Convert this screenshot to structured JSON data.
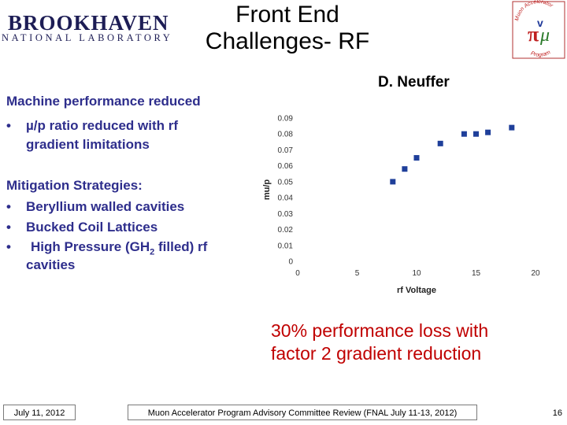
{
  "header": {
    "logo_line1": "BROOKHAVEN",
    "logo_line2": "NATIONAL LABORATORY",
    "title_line1": "Front End",
    "title_line2": "Challenges- RF",
    "map_logo_top": "Muon Accelerator",
    "map_logo_bottom": "Program",
    "author": "D. Neuffer"
  },
  "left": {
    "heading": "Machine performance reduced",
    "bullet_char": "•",
    "bullet1_line1": "µ/p ratio reduced with rf",
    "bullet1_line2": "gradient limitations",
    "mitigation_heading": "Mitigation Strategies:",
    "mit1": "Beryllium walled cavities",
    "mit2": "Bucked Coil Lattices",
    "mit3_pre": "High Pressure (GH",
    "mit3_sub": "2",
    "mit3_post": " filled) rf",
    "mit3_line2": "cavities"
  },
  "conclusion_line1": "30% performance loss with",
  "conclusion_line2": "factor 2 gradient reduction",
  "footer": {
    "date": "July 11, 2012",
    "center": "Muon Accelerator Program Advisory Committee Review (FNAL July 11-13, 2012)",
    "page": "16"
  },
  "colors": {
    "text_blue": "#2e2e8c",
    "marker": "#1f3f9a",
    "conclusion": "#c00000"
  },
  "chart_data": {
    "type": "scatter",
    "xlabel": "rf Voltage",
    "ylabel": "mu/p",
    "xlim": [
      0,
      20
    ],
    "ylim": [
      0,
      0.09
    ],
    "x_ticks": [
      "0",
      "5",
      "10",
      "15",
      "20"
    ],
    "y_ticks": [
      "0",
      "0.01",
      "0.02",
      "0.03",
      "0.04",
      "0.05",
      "0.06",
      "0.07",
      "0.08",
      "0.09"
    ],
    "grid": false,
    "series": [
      {
        "x": [
          8,
          9,
          10,
          12,
          14,
          15,
          16,
          18
        ],
        "y": [
          0.05,
          0.058,
          0.065,
          0.074,
          0.08,
          0.08,
          0.081,
          0.084
        ]
      }
    ]
  }
}
